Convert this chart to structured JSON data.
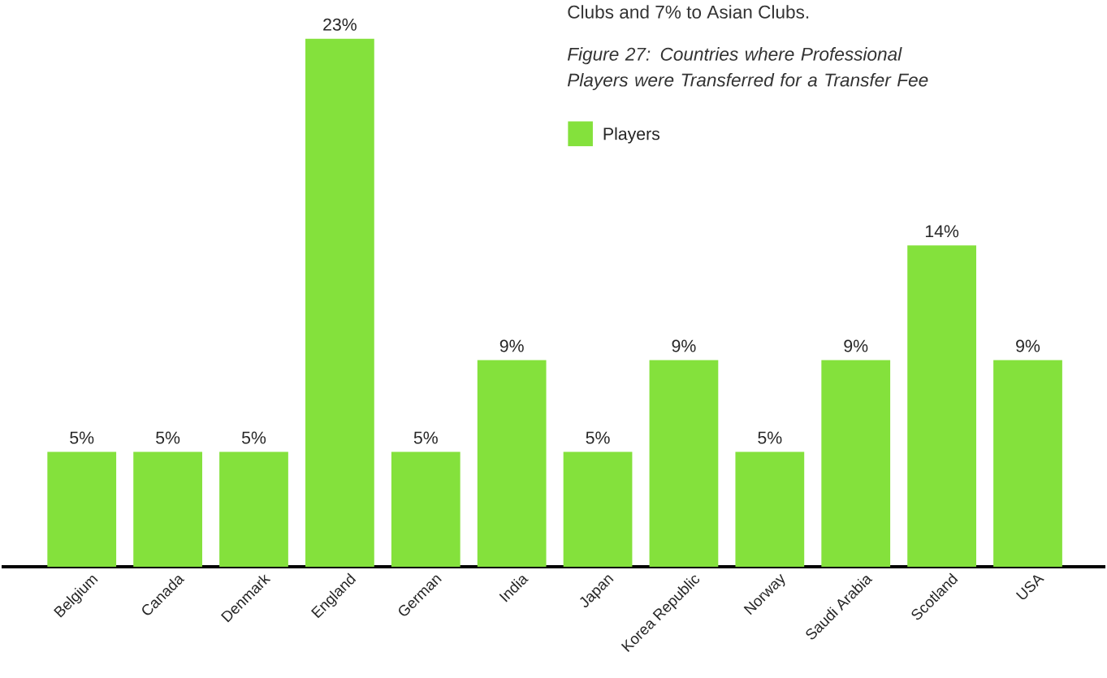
{
  "chart_data": {
    "type": "bar",
    "title": "Figure 27: Countries where Professional Players were Transferred for a Transfer Fee",
    "annotations": [
      "Clubs and 7% to Asian Clubs."
    ],
    "categories": [
      "Belgium",
      "Canada",
      "Denmark",
      "England",
      "German",
      "India",
      "Japan",
      "Korea Republic",
      "Norway",
      "Saudi Arabia",
      "Scotland",
      "USA"
    ],
    "series": [
      {
        "name": "Players",
        "color": "#84e13c",
        "values": [
          5,
          5,
          5,
          23,
          5,
          9,
          5,
          9,
          5,
          9,
          14,
          9
        ],
        "value_labels": [
          "5%",
          "5%",
          "5%",
          "23%",
          "5%",
          "9%",
          "5%",
          "9%",
          "5%",
          "9%",
          "14%",
          "9%"
        ]
      }
    ],
    "legend": "top right"
  }
}
